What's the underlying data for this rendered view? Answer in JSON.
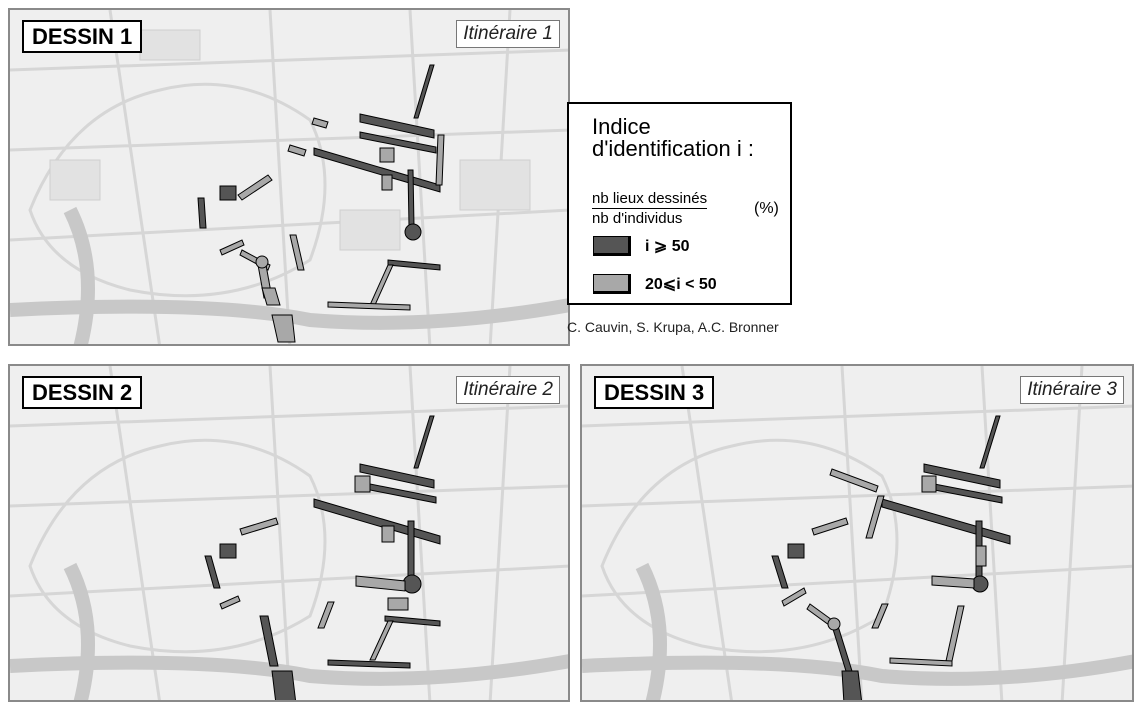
{
  "panels": [
    {
      "title": "DESSIN 1",
      "route": "Itinéraire 1"
    },
    {
      "title": "DESSIN 2",
      "route": "Itinéraire 2"
    },
    {
      "title": "DESSIN 3",
      "route": "Itinéraire 3"
    }
  ],
  "legend": {
    "title_line1": "Indice",
    "title_line2": "d'identification  i :",
    "numerator": "nb lieux dessinés",
    "denominator": "nb d'individus",
    "unit": "(%)",
    "classes": [
      {
        "label": "i ⩾ 50",
        "color": "#555555"
      },
      {
        "label": "20⩽i < 50",
        "color": "#a8a8a8"
      }
    ]
  },
  "credit": "C. Cauvin, S. Krupa, A.C. Bronner",
  "colors": {
    "map_bg": "#efefef",
    "streets": "#d9d9d9",
    "high": "#555555",
    "medium": "#a8a8a8"
  }
}
